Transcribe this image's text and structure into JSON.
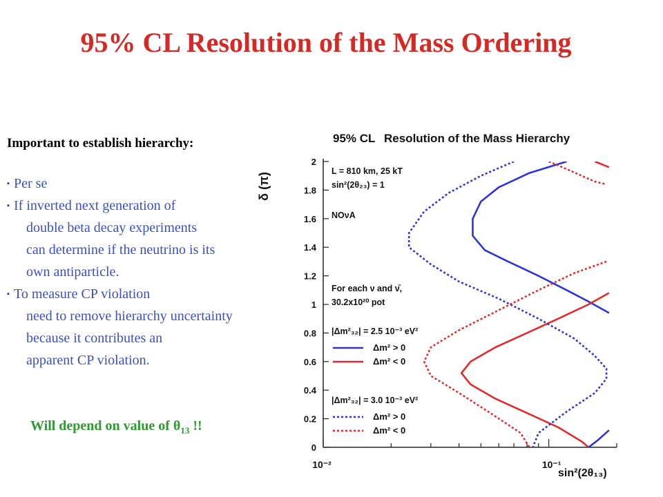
{
  "slide": {
    "title": "95% CL Resolution of the Mass Ordering",
    "heading": "Important to establish hierarchy:",
    "bullets": [
      {
        "lines": [
          "Per se"
        ]
      },
      {
        "lines": [
          "If inverted next generation of",
          "double beta decay experiments",
          "can determine if the neutrino is its",
          "own antiparticle."
        ]
      },
      {
        "lines": [
          "To measure CP violation",
          "need to remove hierarchy uncertainty",
          "because it contributes an",
          "apparent CP violation."
        ]
      }
    ],
    "bullet_marker": "▪",
    "note": {
      "prefix": "Will depend on value of ",
      "symbol": "θ",
      "subscript": "13",
      "suffix": " !!"
    }
  },
  "colors": {
    "title": "#d42a26",
    "bullets": "#3a4fc0",
    "note": "#2d9a2d",
    "blue": "#2b34d6",
    "red": "#e02a2a"
  },
  "chart_data": {
    "type": "line",
    "title_prefix": "95% CL",
    "title": "Resolution of the Mass Hierarchy",
    "ylabel": "δ (π)",
    "xlabel": "sin²(2θ₁₃)",
    "xscale": "log",
    "xlim": [
      0.01,
      0.2
    ],
    "ylim": [
      0,
      2
    ],
    "x_tick_labels": [
      "10⁻²",
      "10⁻¹"
    ],
    "y_ticks": [
      "0",
      "0.2",
      "0.4",
      "0.6",
      "0.8",
      "1",
      "1.2",
      "1.4",
      "1.6",
      "1.8",
      "2"
    ],
    "annotations": [
      "L = 810 km, 25 kT",
      "sin²(2θ₂₃) = 1",
      "NOνA",
      "For each ν and ν̄,",
      "30.2x10²⁰ pot",
      "|Δm²₃₂| = 2.5 10⁻³ eV²",
      "|Δm²₃₂| = 3.0 10⁻³ eV²"
    ],
    "legend_placement": "left-inside",
    "series": [
      {
        "name": "Δm² > 0",
        "group": "|Δm²₃₂| = 2.5 10⁻³ eV²",
        "color": "#2b34d6",
        "dash": false,
        "points": [
          [
            0.12,
            2
          ],
          [
            0.082,
            1.92
          ],
          [
            0.06,
            1.82
          ],
          [
            0.05,
            1.72
          ],
          [
            0.046,
            1.6
          ],
          [
            0.046,
            1.48
          ],
          [
            0.052,
            1.38
          ],
          [
            0.066,
            1.3
          ],
          [
            0.09,
            1.2
          ],
          [
            0.12,
            1.1
          ],
          [
            0.15,
            1.02
          ],
          [
            0.185,
            0.94
          ]
        ]
      },
      {
        "name": "Δm² < 0",
        "group": "|Δm²₃₂| = 2.5 10⁻³ eV²",
        "color": "#e02a2a",
        "dash": false,
        "points": [
          [
            0.185,
            1.08
          ],
          [
            0.15,
            1.0
          ],
          [
            0.11,
            0.9
          ],
          [
            0.08,
            0.8
          ],
          [
            0.058,
            0.7
          ],
          [
            0.045,
            0.6
          ],
          [
            0.041,
            0.52
          ],
          [
            0.045,
            0.44
          ],
          [
            0.058,
            0.34
          ],
          [
            0.08,
            0.24
          ],
          [
            0.11,
            0.14
          ],
          [
            0.14,
            0.04
          ],
          [
            0.15,
            0
          ]
        ]
      },
      {
        "name": "Δm² > 0",
        "group": "|Δm²₃₂| = 3.0 10⁻³ eV²",
        "color": "#2b34d6",
        "dash": true,
        "points": [
          [
            0.07,
            2
          ],
          [
            0.05,
            1.9
          ],
          [
            0.036,
            1.78
          ],
          [
            0.028,
            1.65
          ],
          [
            0.024,
            1.5
          ],
          [
            0.024,
            1.4
          ],
          [
            0.03,
            1.28
          ],
          [
            0.04,
            1.16
          ],
          [
            0.06,
            1.04
          ],
          [
            0.09,
            0.9
          ],
          [
            0.13,
            0.76
          ],
          [
            0.16,
            0.64
          ],
          [
            0.18,
            0.55
          ],
          [
            0.18,
            0.48
          ],
          [
            0.16,
            0.38
          ],
          [
            0.12,
            0.25
          ],
          [
            0.09,
            0.1
          ],
          [
            0.085,
            0
          ]
        ]
      },
      {
        "name": "Δm² < 0",
        "group": "|Δm²₃₂| = 3.0 10⁻³ eV²",
        "color": "#e02a2a",
        "dash": true,
        "points": [
          [
            0.18,
            1.3
          ],
          [
            0.13,
            1.22
          ],
          [
            0.09,
            1.1
          ],
          [
            0.06,
            0.96
          ],
          [
            0.04,
            0.82
          ],
          [
            0.03,
            0.7
          ],
          [
            0.028,
            0.6
          ],
          [
            0.03,
            0.5
          ],
          [
            0.04,
            0.38
          ],
          [
            0.055,
            0.24
          ],
          [
            0.075,
            0.1
          ],
          [
            0.082,
            0
          ]
        ]
      },
      {
        "name": "",
        "group": "",
        "color": "#e02a2a",
        "dash": true,
        "points": [
          [
            0.1,
            2
          ],
          [
            0.115,
            1.96
          ],
          [
            0.14,
            1.9
          ],
          [
            0.16,
            1.86
          ],
          [
            0.18,
            1.84
          ]
        ]
      },
      {
        "name": "",
        "group": "",
        "color": "#e02a2a",
        "dash": false,
        "points": [
          [
            0.16,
            2
          ],
          [
            0.172,
            1.98
          ],
          [
            0.185,
            1.96
          ]
        ]
      },
      {
        "name": "",
        "group": "",
        "color": "#2b34d6",
        "dash": false,
        "points": [
          [
            0.15,
            0
          ],
          [
            0.165,
            0.05
          ],
          [
            0.185,
            0.12
          ]
        ]
      }
    ]
  }
}
